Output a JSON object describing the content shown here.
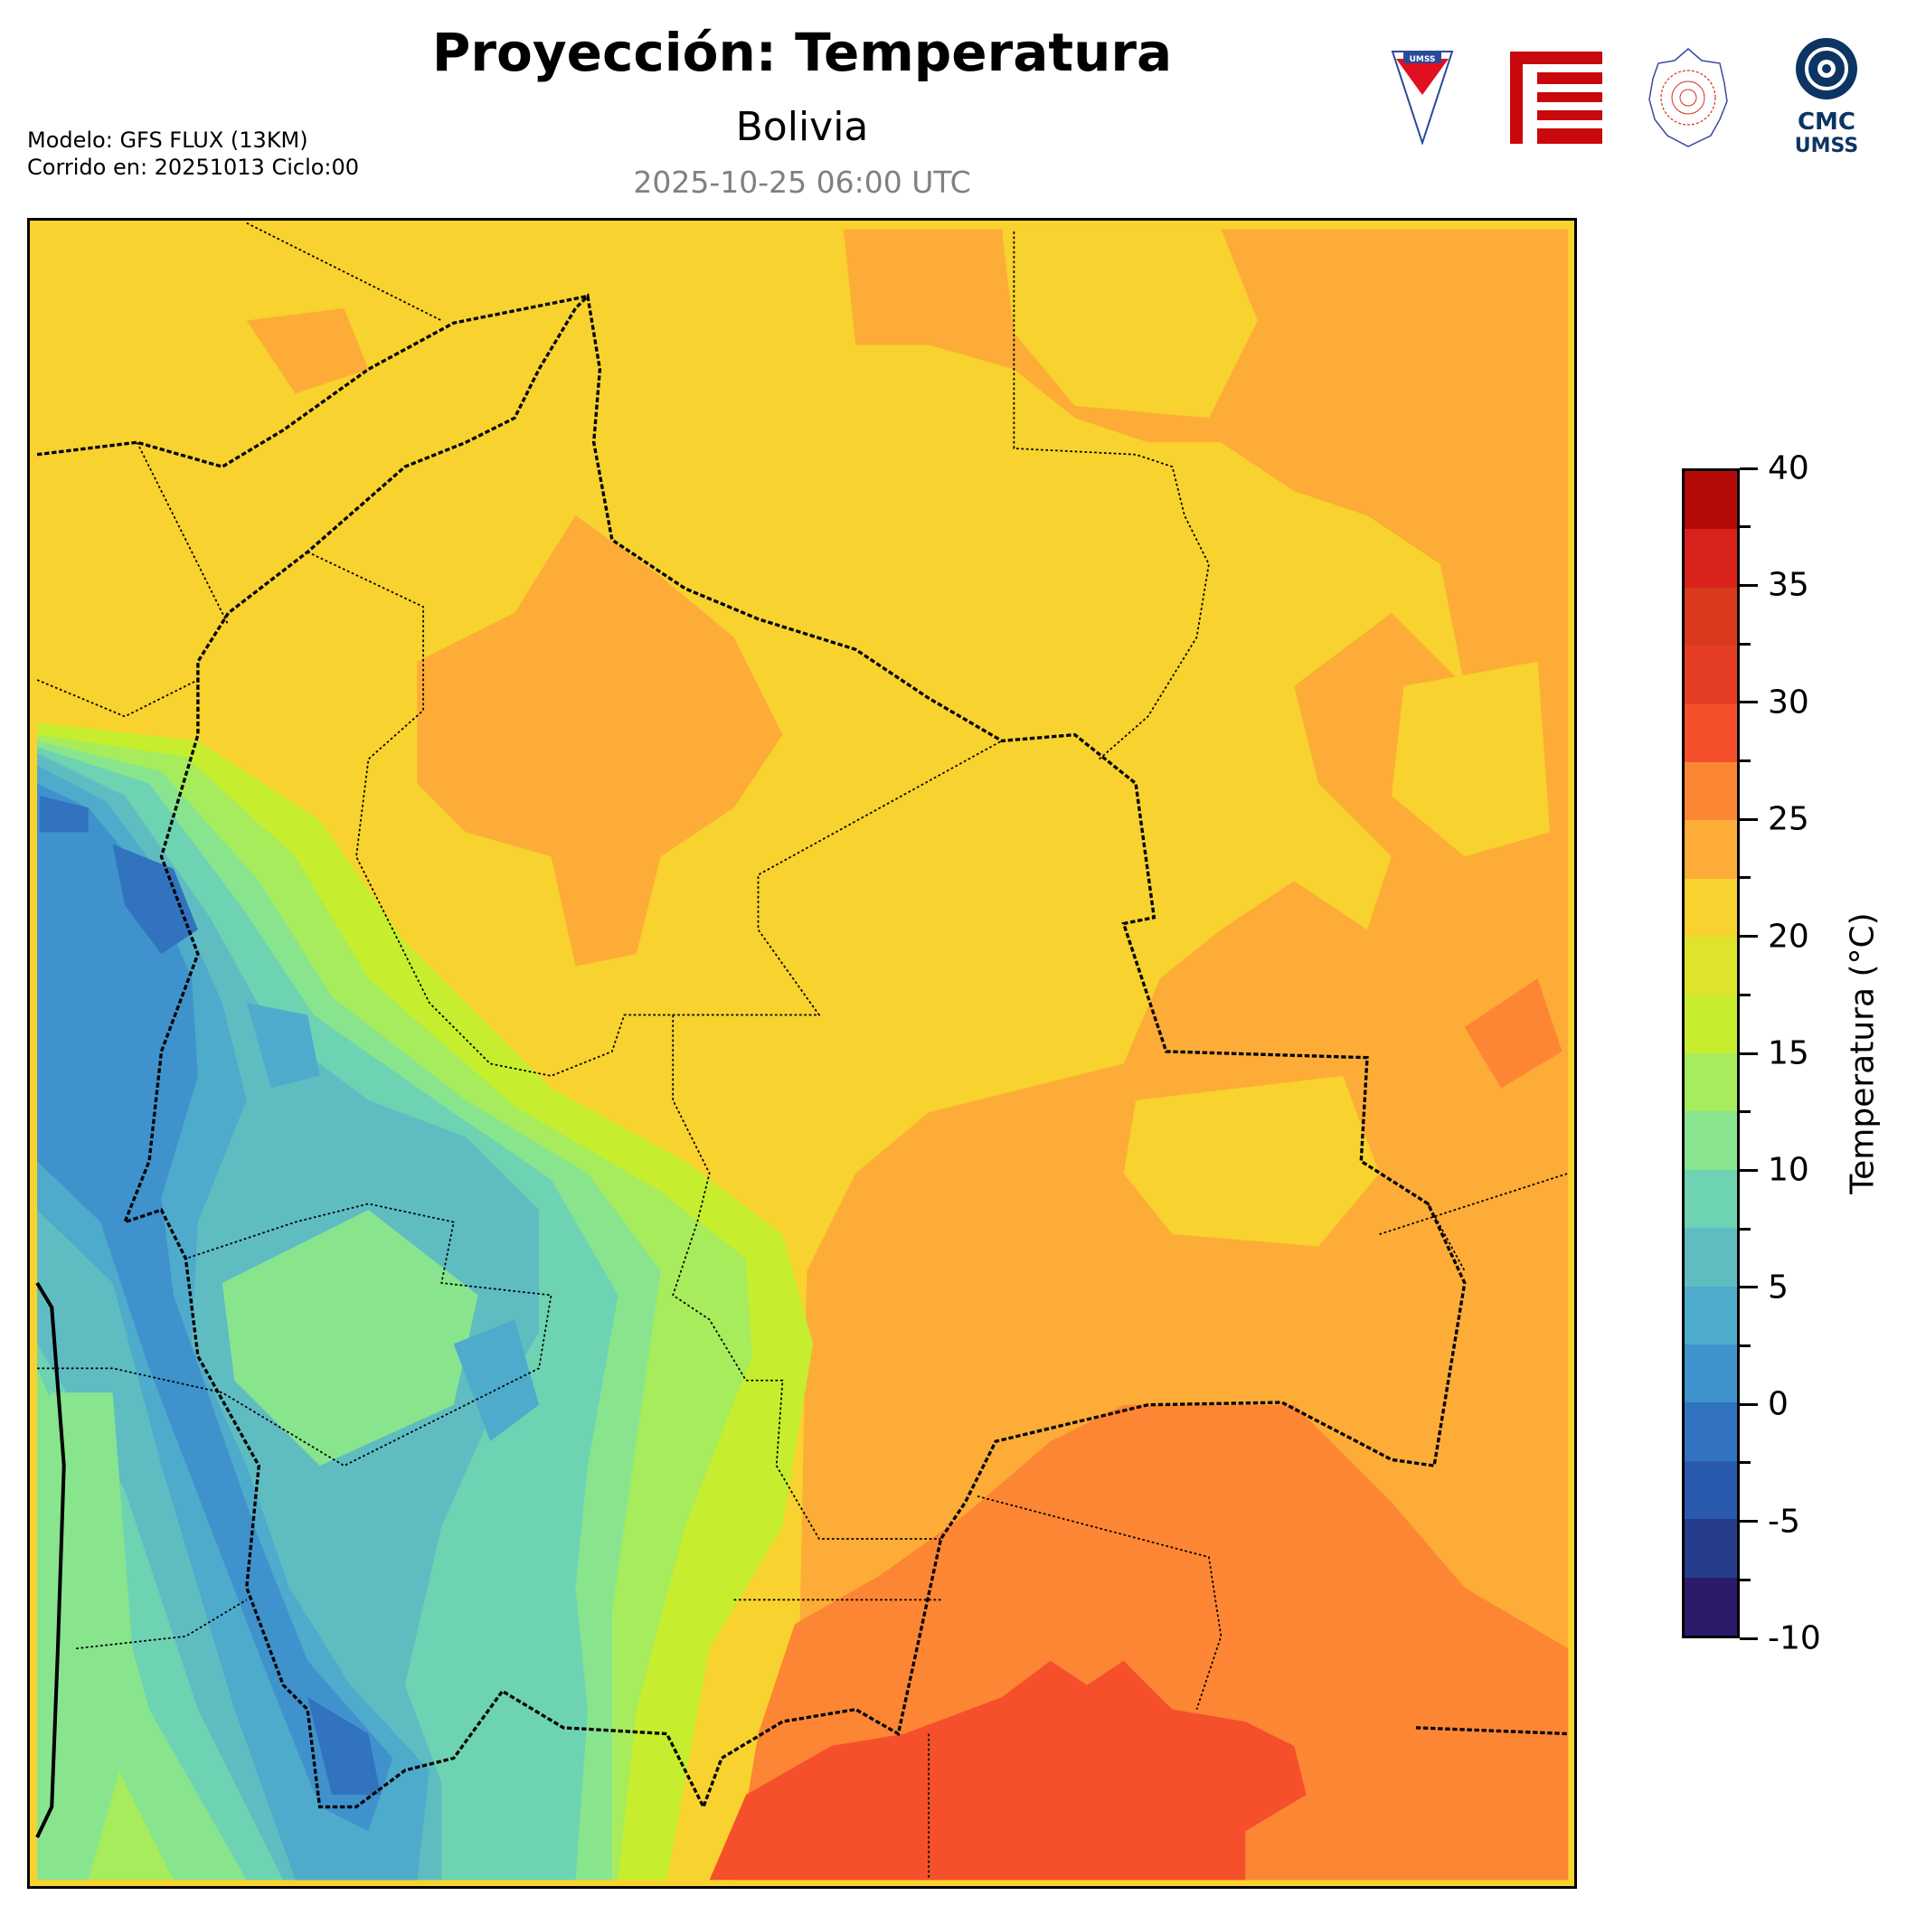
{
  "header": {
    "title": "Proyección: Temperatura",
    "subtitle": "Bolivia",
    "valid_time": "2025-10-25 06:00 UTC",
    "model_line": "Modelo: GFS FLUX (13KM)",
    "run_line": "Corrido en: 20251013 Ciclo:00"
  },
  "logos": {
    "umss_text": "UMSS",
    "cmc_line1": "CMC",
    "cmc_line2": "UMSS"
  },
  "colorbar": {
    "label": "Temperatura (°C)",
    "min": -10,
    "max": 40,
    "step": 2.5,
    "ticks": [
      "-10",
      "-5",
      "0",
      "5",
      "10",
      "15",
      "20",
      "25",
      "30",
      "35",
      "40"
    ],
    "colors": [
      "#2c1b6a",
      "#263d8c",
      "#2a5aad",
      "#3173bf",
      "#3f92cc",
      "#4fabcb",
      "#5fbdc2",
      "#6dd3b3",
      "#88e58e",
      "#a6ec5c",
      "#c6ee2e",
      "#dee32b",
      "#f8d22e",
      "#fdac37",
      "#fd8634",
      "#f5502b",
      "#e63e26",
      "#d93a1b",
      "#d9221c",
      "#b40a08"
    ]
  }
}
